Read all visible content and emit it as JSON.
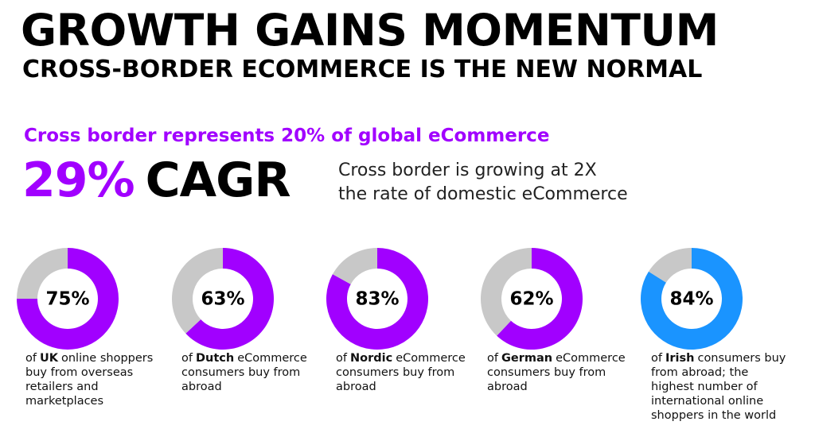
{
  "header": {
    "title": "GROWTH GAINS MOMENTUM",
    "subtitle": "CROSS-BORDER ECOMMERCE IS THE NEW NORMAL"
  },
  "highlight": {
    "lead": "Cross border represents 20% of global eCommerce",
    "stat": "29%",
    "stat_unit": "CAGR",
    "note": [
      "Cross border is growing at 2X",
      "the rate of domestic eCommerce"
    ]
  },
  "chart_data": [
    {
      "type": "donut",
      "values": [
        75,
        25
      ],
      "value_labels": [
        "75%",
        null
      ],
      "colors": [
        "#a100ff",
        "#c8c8c8"
      ],
      "caption": [
        "of",
        "UK",
        "online shoppers buy from overseas retailers and marketplaces"
      ]
    },
    {
      "type": "donut",
      "values": [
        63,
        37
      ],
      "value_labels": [
        "63%",
        null
      ],
      "colors": [
        "#a100ff",
        "#c8c8c8"
      ],
      "caption": [
        "of",
        "Dutch",
        "eCommerce consumers buy from abroad"
      ]
    },
    {
      "type": "donut",
      "values": [
        83,
        17
      ],
      "value_labels": [
        "83%",
        null
      ],
      "colors": [
        "#a100ff",
        "#c8c8c8"
      ],
      "caption": [
        "of",
        "Nordic",
        "eCommerce consumers buy from abroad"
      ]
    },
    {
      "type": "donut",
      "values": [
        62,
        38
      ],
      "value_labels": [
        "62%",
        null
      ],
      "colors": [
        "#a100ff",
        "#c8c8c8"
      ],
      "caption": [
        "of",
        "German",
        "eCommerce consumers buy from abroad"
      ]
    },
    {
      "type": "donut",
      "values": [
        84,
        16
      ],
      "value_labels": [
        "84%",
        null
      ],
      "colors": [
        "#1a94ff",
        "#c8c8c8"
      ],
      "caption": [
        "of",
        "Irish",
        "consumers buy from abroad; the highest number of international online shoppers in the world"
      ]
    }
  ]
}
